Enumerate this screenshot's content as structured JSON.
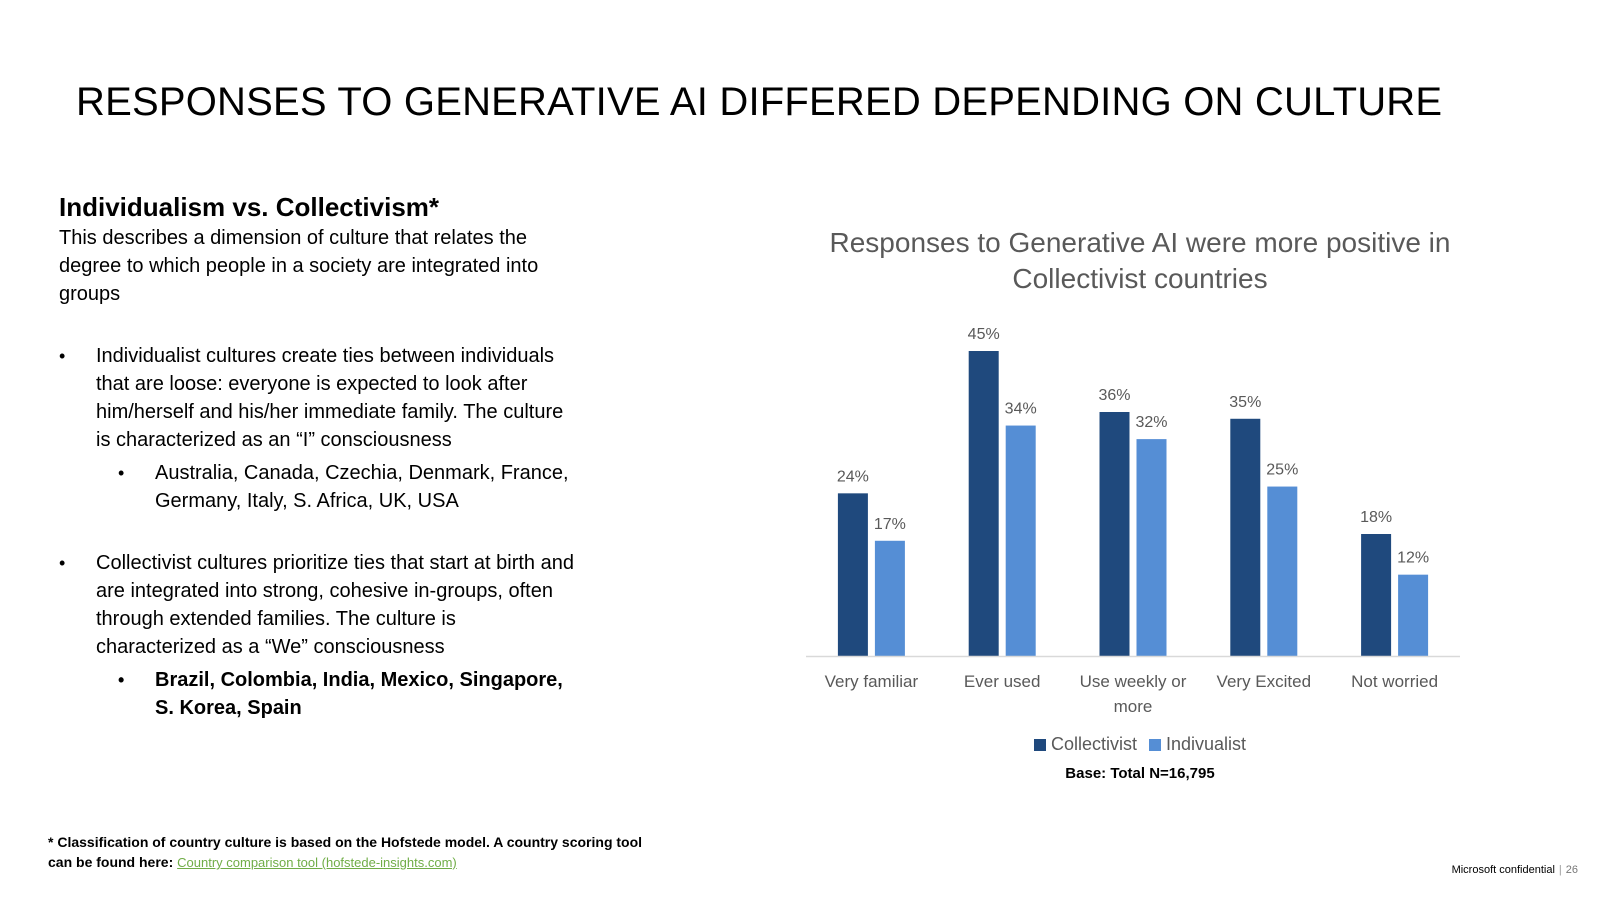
{
  "slide": {
    "title": "RESPONSES TO GENERATIVE AI DIFFERED DEPENDING ON CULTURE"
  },
  "left": {
    "heading": "Individualism vs. Collectivism*",
    "description": "This describes a dimension of culture that relates the degree to which people in a society are integrated into groups",
    "bullet_marker": "•",
    "bullets": [
      {
        "text": "Individualist cultures create ties between individuals that are loose: everyone is expected to look after him/herself and his/her immediate family. The culture is characterized as an “I” consciousness",
        "sub": "Australia, Canada, Czechia, Denmark, France, Germany, Italy, S. Africa, UK, USA"
      },
      {
        "text": "Collectivist cultures prioritize ties that start at birth and are integrated into strong, cohesive in-groups, often through extended families. The culture is characterized as a “We” consciousness",
        "sub": "Brazil, Colombia, India, Mexico, Singapore, S. Korea, Spain"
      }
    ]
  },
  "chart_data": {
    "type": "bar",
    "title": "Responses to Generative AI were more positive in Collectivist countries",
    "categories": [
      "Very familiar",
      "Ever used",
      "Use weekly or more",
      "Very Excited",
      "Not worried"
    ],
    "category_lines": [
      [
        "Very familiar"
      ],
      [
        "Ever used"
      ],
      [
        "Use weekly or",
        "more"
      ],
      [
        "Very Excited"
      ],
      [
        "Not worried"
      ]
    ],
    "series": [
      {
        "name": "Collectivist",
        "values": [
          24,
          45,
          36,
          35,
          18
        ],
        "labels": [
          "24%",
          "45%",
          "36%",
          "35%",
          "18%"
        ],
        "color": "#1F497D"
      },
      {
        "name": "Indivualist",
        "values": [
          17,
          34,
          32,
          25,
          12
        ],
        "labels": [
          "17%",
          "34%",
          "32%",
          "25%",
          "12%"
        ],
        "color": "#558ED5"
      }
    ],
    "ylim": [
      0,
      50
    ],
    "grid": false,
    "legend": "bottom",
    "label_color": "#595959",
    "axis_color": "#D9D9D9"
  },
  "base_note": "Base: Total N=16,795",
  "footnote": {
    "text": "* Classification of country culture is based on the Hofstede model. A country scoring tool can be found here:",
    "link_text": "Country comparison tool (hofstede-insights.com)"
  },
  "footer": {
    "confidential": "Microsoft confidential",
    "separator": "|",
    "page": "26"
  }
}
